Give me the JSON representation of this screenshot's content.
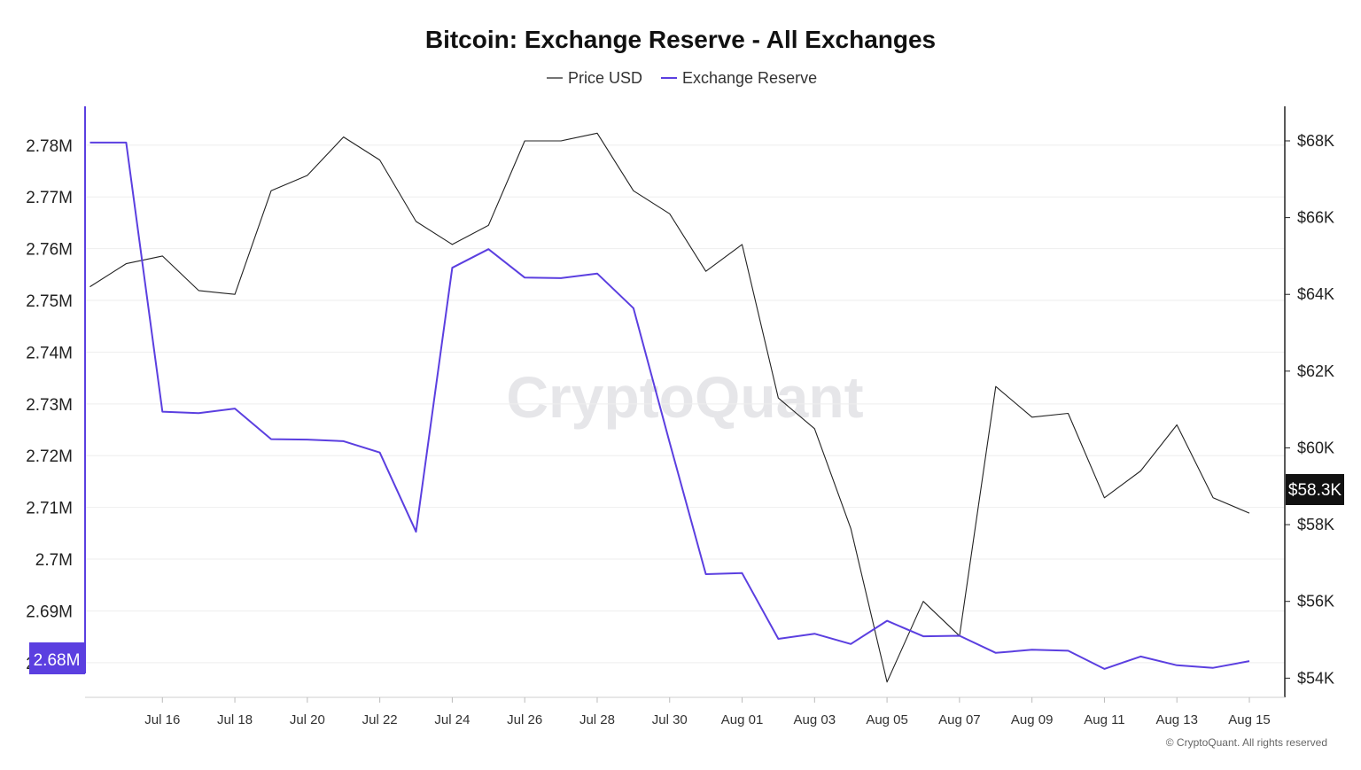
{
  "chart_data": {
    "type": "line",
    "title": "Bitcoin: Exchange Reserve - All Exchanges",
    "legend": {
      "placement": "top-center",
      "entries": [
        "Price USD",
        "Exchange Reserve"
      ]
    },
    "x_tick_labels": [
      "Jul 16",
      "Jul 18",
      "Jul 20",
      "Jul 22",
      "Jul 24",
      "Jul 26",
      "Jul 28",
      "Jul 30",
      "Aug 01",
      "Aug 03",
      "Aug 05",
      "Aug 07",
      "Aug 09",
      "Aug 11",
      "Aug 13",
      "Aug 15"
    ],
    "x": [
      "2024-07-15",
      "2024-07-16",
      "2024-07-17",
      "2024-07-18",
      "2024-07-19",
      "2024-07-20",
      "2024-07-21",
      "2024-07-22",
      "2024-07-23",
      "2024-07-24",
      "2024-07-25",
      "2024-07-26",
      "2024-07-27",
      "2024-07-28",
      "2024-07-29",
      "2024-07-30",
      "2024-07-31",
      "2024-08-01",
      "2024-08-02",
      "2024-08-03",
      "2024-08-04",
      "2024-08-05",
      "2024-08-06",
      "2024-08-07",
      "2024-08-08",
      "2024-08-09",
      "2024-08-10",
      "2024-08-11",
      "2024-08-12",
      "2024-08-13",
      "2024-08-14",
      "2024-08-15"
    ],
    "x_range": [
      "2024-07-14",
      "2024-08-15"
    ],
    "grid": true,
    "series": [
      {
        "name": "Price USD",
        "axis": "right",
        "color": "#222222",
        "start_value": 64200,
        "values": [
          64800,
          65000,
          64100,
          64000,
          66700,
          67100,
          68100,
          67500,
          65900,
          65300,
          65800,
          68000,
          68000,
          68200,
          66700,
          66100,
          64600,
          65300,
          61300,
          60500,
          57900,
          53900,
          56000,
          55100,
          61600,
          60800,
          60900,
          58700,
          59400,
          60600,
          58700,
          58300
        ]
      },
      {
        "name": "Exchange Reserve",
        "axis": "left",
        "color": "#5b3fe0",
        "start_value": 2.7805,
        "values": [
          2.7805,
          2.7285,
          2.7282,
          2.7291,
          2.7232,
          2.7231,
          2.7228,
          2.7206,
          2.7053,
          2.7563,
          2.7599,
          2.7544,
          2.7543,
          2.7552,
          2.7485,
          2.7225,
          2.6971,
          2.6973,
          2.6846,
          2.6856,
          2.6836,
          2.6881,
          2.6851,
          2.6852,
          2.6819,
          2.6825,
          2.6823,
          2.6788,
          2.6812,
          2.6795,
          2.679,
          2.6803
        ]
      }
    ],
    "y_left": {
      "ticks": [
        "2.68M",
        "2.69M",
        "2.7M",
        "2.71M",
        "2.72M",
        "2.73M",
        "2.74M",
        "2.75M",
        "2.76M",
        "2.77M",
        "2.78M"
      ],
      "range": [
        2.6733,
        2.7875
      ]
    },
    "y_right": {
      "ticks": [
        "$54K",
        "$56K",
        "$58K",
        "$60K",
        "$62K",
        "$64K",
        "$66K",
        "$68K"
      ],
      "range": [
        53500,
        68900
      ]
    },
    "current_badges": {
      "left": "2.68M",
      "right": "$58.3K"
    },
    "watermark": "CryptoQuant",
    "copyright": "© CryptoQuant. All rights reserved"
  }
}
